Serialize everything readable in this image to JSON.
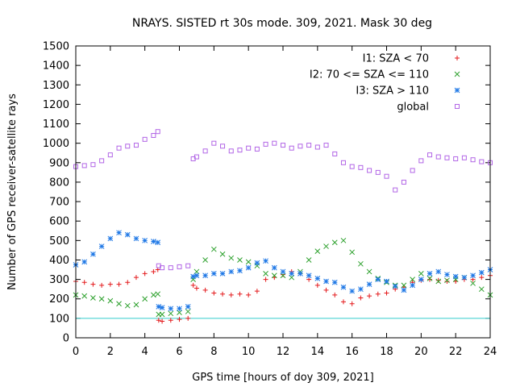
{
  "chart_data": {
    "type": "scatter",
    "title": "NRAYS. SISTED rt 30s mode. 309, 2021. Mask 30 deg",
    "xlabel": "GPS time [hours of doy 309, 2021]",
    "ylabel": "Number of GPS receiver-satellite rays",
    "xlim": [
      0,
      24
    ],
    "ylim": [
      0,
      1500
    ],
    "xticks": [
      0,
      2,
      4,
      6,
      8,
      10,
      12,
      14,
      16,
      18,
      20,
      22,
      24
    ],
    "yticks": [
      0,
      100,
      200,
      300,
      400,
      500,
      600,
      700,
      800,
      900,
      1000,
      1100,
      1200,
      1300,
      1400,
      1500
    ],
    "grid": false,
    "legend_position": "top-right",
    "threshold_line": {
      "y": 100,
      "color": "#33cccc"
    },
    "series": [
      {
        "name": "I1: SZA < 70",
        "marker": "+",
        "color": "#e41a1c",
        "points": [
          [
            0,
            290
          ],
          [
            0.5,
            285
          ],
          [
            1,
            275
          ],
          [
            1.5,
            270
          ],
          [
            2,
            275
          ],
          [
            2.5,
            275
          ],
          [
            3,
            285
          ],
          [
            3.5,
            310
          ],
          [
            4,
            330
          ],
          [
            4.5,
            340
          ],
          [
            4.75,
            350
          ],
          [
            4.8,
            90
          ],
          [
            5,
            85
          ],
          [
            5.5,
            90
          ],
          [
            6,
            95
          ],
          [
            6.5,
            100
          ],
          [
            6.8,
            270
          ],
          [
            7,
            255
          ],
          [
            7.5,
            245
          ],
          [
            8,
            230
          ],
          [
            8.5,
            225
          ],
          [
            9,
            220
          ],
          [
            9.5,
            225
          ],
          [
            10,
            220
          ],
          [
            10.5,
            240
          ],
          [
            11,
            300
          ],
          [
            11.5,
            310
          ],
          [
            12,
            325
          ],
          [
            12.5,
            340
          ],
          [
            13,
            330
          ],
          [
            13.5,
            300
          ],
          [
            14,
            270
          ],
          [
            14.5,
            245
          ],
          [
            15,
            220
          ],
          [
            15.5,
            185
          ],
          [
            16,
            175
          ],
          [
            16.5,
            205
          ],
          [
            17,
            215
          ],
          [
            17.5,
            225
          ],
          [
            18,
            230
          ],
          [
            18.5,
            250
          ],
          [
            19,
            260
          ],
          [
            19.5,
            285
          ],
          [
            20,
            295
          ],
          [
            20.5,
            300
          ],
          [
            21,
            295
          ],
          [
            21.5,
            290
          ],
          [
            22,
            290
          ],
          [
            22.5,
            300
          ],
          [
            23,
            300
          ],
          [
            23.5,
            310
          ],
          [
            24,
            320
          ]
        ]
      },
      {
        "name": "I2: 70 <= SZA <= 110",
        "marker": "x",
        "color": "#2ca02c",
        "points": [
          [
            0,
            220
          ],
          [
            0.5,
            215
          ],
          [
            1,
            205
          ],
          [
            1.5,
            200
          ],
          [
            2,
            190
          ],
          [
            2.5,
            175
          ],
          [
            3,
            165
          ],
          [
            3.5,
            170
          ],
          [
            4,
            200
          ],
          [
            4.5,
            220
          ],
          [
            4.75,
            225
          ],
          [
            4.8,
            120
          ],
          [
            5,
            120
          ],
          [
            5.5,
            125
          ],
          [
            6,
            130
          ],
          [
            6.5,
            135
          ],
          [
            6.8,
            300
          ],
          [
            7,
            340
          ],
          [
            7.5,
            400
          ],
          [
            8,
            455
          ],
          [
            8.5,
            430
          ],
          [
            9,
            410
          ],
          [
            9.5,
            400
          ],
          [
            10,
            390
          ],
          [
            10.5,
            370
          ],
          [
            11,
            330
          ],
          [
            11.5,
            320
          ],
          [
            12,
            320
          ],
          [
            12.5,
            310
          ],
          [
            13,
            340
          ],
          [
            13.5,
            400
          ],
          [
            14,
            445
          ],
          [
            14.5,
            470
          ],
          [
            15,
            490
          ],
          [
            15.5,
            500
          ],
          [
            16,
            440
          ],
          [
            16.5,
            380
          ],
          [
            17,
            340
          ],
          [
            17.5,
            305
          ],
          [
            18,
            285
          ],
          [
            18.5,
            270
          ],
          [
            19,
            270
          ],
          [
            19.5,
            300
          ],
          [
            20,
            330
          ],
          [
            20.5,
            305
          ],
          [
            21,
            290
          ],
          [
            21.5,
            295
          ],
          [
            22,
            300
          ],
          [
            22.5,
            310
          ],
          [
            23,
            280
          ],
          [
            23.5,
            250
          ],
          [
            24,
            220
          ]
        ]
      },
      {
        "name": "I3: SZA > 110",
        "marker": "*",
        "color": "#1f78e6",
        "points": [
          [
            0,
            375
          ],
          [
            0.5,
            390
          ],
          [
            1,
            430
          ],
          [
            1.5,
            470
          ],
          [
            2,
            510
          ],
          [
            2.5,
            540
          ],
          [
            3,
            530
          ],
          [
            3.5,
            510
          ],
          [
            4,
            500
          ],
          [
            4.5,
            495
          ],
          [
            4.75,
            490
          ],
          [
            4.8,
            160
          ],
          [
            5,
            155
          ],
          [
            5.5,
            150
          ],
          [
            6,
            150
          ],
          [
            6.5,
            160
          ],
          [
            6.8,
            315
          ],
          [
            7,
            320
          ],
          [
            7.5,
            320
          ],
          [
            8,
            330
          ],
          [
            8.5,
            330
          ],
          [
            9,
            340
          ],
          [
            9.5,
            345
          ],
          [
            10,
            360
          ],
          [
            10.5,
            385
          ],
          [
            11,
            395
          ],
          [
            11.5,
            360
          ],
          [
            12,
            340
          ],
          [
            12.5,
            330
          ],
          [
            13,
            330
          ],
          [
            13.5,
            320
          ],
          [
            14,
            305
          ],
          [
            14.5,
            290
          ],
          [
            15,
            285
          ],
          [
            15.5,
            260
          ],
          [
            16,
            240
          ],
          [
            16.5,
            250
          ],
          [
            17,
            275
          ],
          [
            17.5,
            300
          ],
          [
            18,
            290
          ],
          [
            18.5,
            265
          ],
          [
            19,
            245
          ],
          [
            19.5,
            270
          ],
          [
            20,
            300
          ],
          [
            20.5,
            330
          ],
          [
            21,
            340
          ],
          [
            21.5,
            325
          ],
          [
            22,
            315
          ],
          [
            22.5,
            310
          ],
          [
            23,
            320
          ],
          [
            23.5,
            335
          ],
          [
            24,
            350
          ]
        ]
      },
      {
        "name": "global",
        "marker": "square",
        "color": "#b266e6",
        "points": [
          [
            0,
            880
          ],
          [
            0.5,
            885
          ],
          [
            1,
            890
          ],
          [
            1.5,
            910
          ],
          [
            2,
            940
          ],
          [
            2.5,
            975
          ],
          [
            3,
            985
          ],
          [
            3.5,
            990
          ],
          [
            4,
            1020
          ],
          [
            4.5,
            1040
          ],
          [
            4.75,
            1060
          ],
          [
            4.8,
            370
          ],
          [
            5,
            360
          ],
          [
            5.5,
            360
          ],
          [
            6,
            365
          ],
          [
            6.5,
            370
          ],
          [
            6.8,
            920
          ],
          [
            7,
            930
          ],
          [
            7.5,
            960
          ],
          [
            8,
            1000
          ],
          [
            8.5,
            985
          ],
          [
            9,
            960
          ],
          [
            9.5,
            965
          ],
          [
            10,
            975
          ],
          [
            10.5,
            970
          ],
          [
            11,
            995
          ],
          [
            11.5,
            1000
          ],
          [
            12,
            990
          ],
          [
            12.5,
            975
          ],
          [
            13,
            985
          ],
          [
            13.5,
            990
          ],
          [
            14,
            980
          ],
          [
            14.5,
            990
          ],
          [
            15,
            945
          ],
          [
            15.5,
            900
          ],
          [
            16,
            880
          ],
          [
            16.5,
            875
          ],
          [
            17,
            860
          ],
          [
            17.5,
            850
          ],
          [
            18,
            830
          ],
          [
            18.5,
            760
          ],
          [
            19,
            800
          ],
          [
            19.5,
            860
          ],
          [
            20,
            910
          ],
          [
            20.5,
            940
          ],
          [
            21,
            930
          ],
          [
            21.5,
            925
          ],
          [
            22,
            920
          ],
          [
            22.5,
            925
          ],
          [
            23,
            915
          ],
          [
            23.5,
            905
          ],
          [
            24,
            900
          ]
        ]
      }
    ]
  }
}
